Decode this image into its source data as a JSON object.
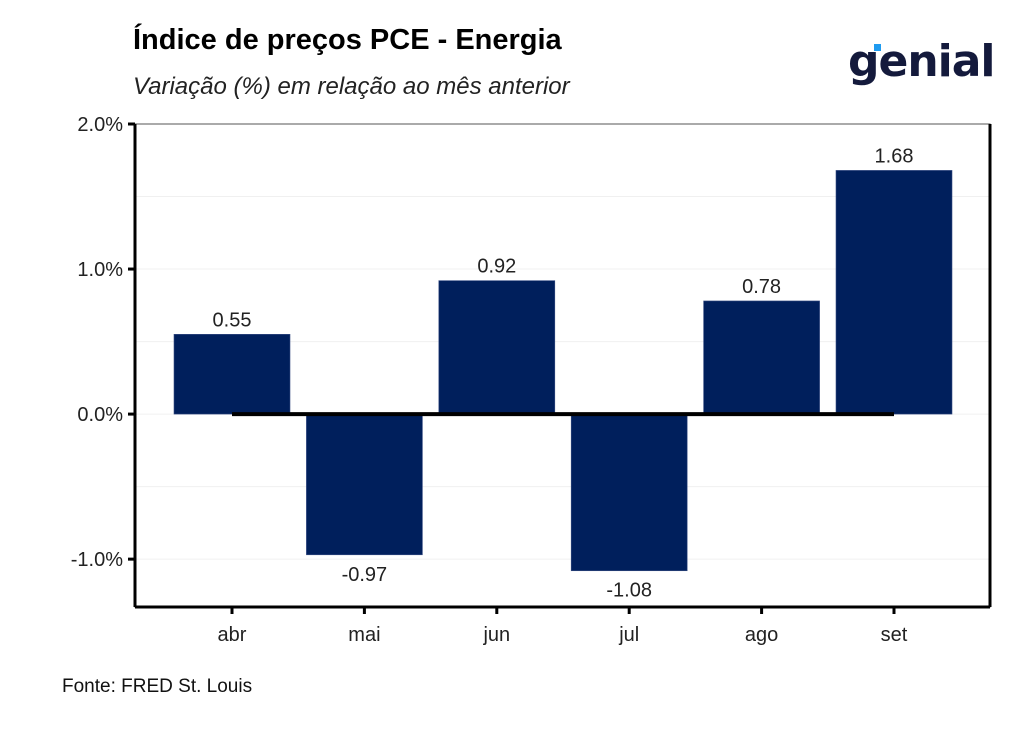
{
  "header": {
    "title": "Índice de preços PCE - Energia",
    "subtitle": "Variação (%) em relação ao mês anterior"
  },
  "logo": {
    "text": "genial",
    "text_color": "#141a3c",
    "accent_color": "#1e9bf0"
  },
  "footer": {
    "source": "Fonte: FRED St. Louis"
  },
  "chart_data": {
    "type": "bar",
    "title": "Índice de preços PCE - Energia",
    "subtitle": "Variação (%) em relação ao mês anterior",
    "xlabel": "",
    "ylabel": "",
    "categories": [
      "abr",
      "mai",
      "jun",
      "jul",
      "ago",
      "set"
    ],
    "values": [
      0.55,
      -0.97,
      0.92,
      -1.08,
      0.78,
      1.68
    ],
    "data_labels": [
      "0.55",
      "-0.97",
      "0.92",
      "-1.08",
      "0.78",
      "1.68"
    ],
    "ylim": [
      -1.33,
      2.0
    ],
    "yticks": [
      2.0,
      1.0,
      0.0,
      -1.0
    ],
    "ytick_labels": [
      "2.0%",
      "1.0%",
      "0.0%",
      "-1.0%"
    ],
    "minor_gridlines": [
      1.5,
      0.5,
      -0.5
    ],
    "grid": true,
    "legend": "none",
    "bar_color": "#001f5c",
    "zero_line": {
      "value": 0,
      "from_category": "abr",
      "to_category": "set",
      "color": "#000000"
    },
    "source": "Fonte: FRED St. Louis"
  }
}
